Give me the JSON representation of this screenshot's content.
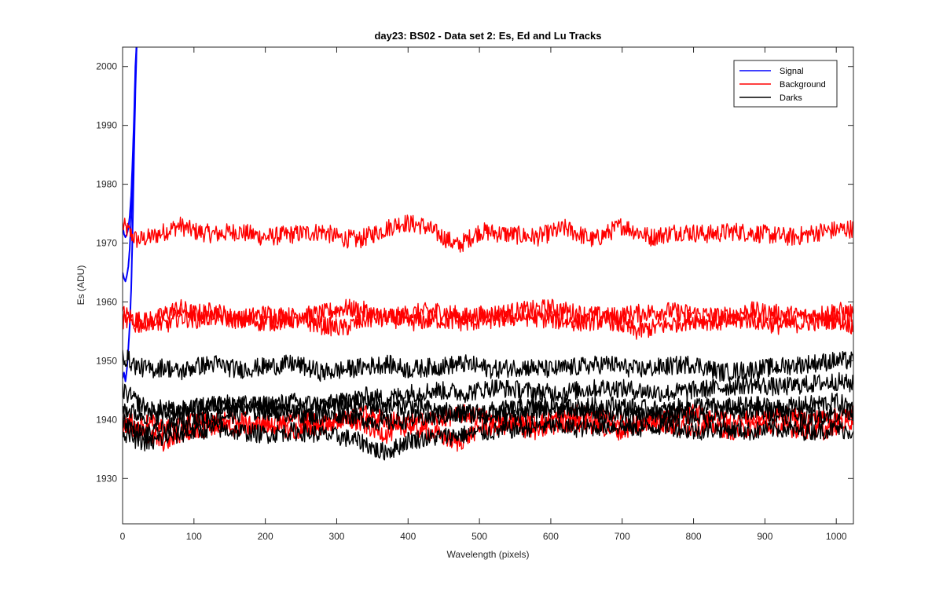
{
  "chart_data": {
    "type": "line",
    "title": "day23: BS02 - Data set 2: Es, Ed and Lu Tracks",
    "xlabel": "Wavelength (pixels)",
    "ylabel": "Es (ADU)",
    "xlim": [
      0,
      1024
    ],
    "ylim": [
      1922.3,
      2003.3
    ],
    "xticks": [
      0,
      100,
      200,
      300,
      400,
      500,
      600,
      700,
      800,
      900,
      1000
    ],
    "yticks": [
      1930,
      1940,
      1950,
      1960,
      1970,
      1980,
      1990,
      2000
    ],
    "grid": false,
    "legend_position": "top-right",
    "legend": [
      {
        "label": "Signal",
        "color": "#0000ff"
      },
      {
        "label": "Background",
        "color": "#ff0000"
      },
      {
        "label": "Darks",
        "color": "#000000"
      }
    ],
    "series": [
      {
        "group": "Signal",
        "color": "#0000ff",
        "x": [
          0,
          2,
          4,
          6,
          8,
          10,
          12,
          14,
          16,
          18,
          20
        ],
        "y": [
          1947,
          1948,
          1946.5,
          1948.5,
          1952,
          1956,
          1962,
          1972,
          1985,
          1996,
          2005
        ]
      },
      {
        "group": "Signal",
        "color": "#0000ff",
        "x": [
          0,
          2,
          4,
          6,
          8,
          10,
          12,
          14,
          16,
          18,
          20
        ],
        "y": [
          1965,
          1964,
          1963.5,
          1964.5,
          1966,
          1969,
          1974,
          1980,
          1988,
          1998,
          2005
        ]
      },
      {
        "group": "Signal",
        "color": "#0000ff",
        "x": [
          0,
          2,
          4,
          6,
          8,
          10,
          12,
          14,
          16,
          18,
          20
        ],
        "y": [
          1973,
          1971.5,
          1971,
          1971.5,
          1972.5,
          1974.5,
          1978,
          1984,
          1991,
          2000,
          2005
        ]
      },
      {
        "group": "Background",
        "color": "#ff0000",
        "x": [
          0,
          20,
          40,
          60,
          80,
          100,
          130,
          160,
          200,
          240,
          280,
          300,
          330,
          360,
          390,
          420,
          450,
          470,
          500,
          540,
          580,
          620,
          660,
          700,
          740,
          780,
          820,
          860,
          900,
          940,
          980,
          1024
        ],
        "y": [
          1973,
          1970.5,
          1971,
          1972,
          1973,
          1972,
          1971.5,
          1972,
          1971,
          1971.5,
          1972,
          1971,
          1970.5,
          1972,
          1973.5,
          1973,
          1971,
          1969.5,
          1972,
          1971.5,
          1971,
          1972.5,
          1970.5,
          1973,
          1971,
          1972,
          1971.5,
          1972,
          1971.5,
          1971,
          1972,
          1972.5
        ]
      },
      {
        "group": "Background",
        "color": "#ff0000",
        "x": [
          0,
          20,
          40,
          60,
          80,
          100,
          130,
          160,
          200,
          240,
          280,
          310,
          340,
          370,
          400,
          440,
          480,
          520,
          560,
          600,
          640,
          680,
          720,
          760,
          800,
          840,
          880,
          920,
          960,
          1000,
          1024
        ],
        "y": [
          1958,
          1957,
          1956.5,
          1958,
          1959,
          1958,
          1958.5,
          1957,
          1958,
          1957.5,
          1958,
          1959,
          1958.5,
          1957,
          1958,
          1958.5,
          1957.5,
          1958,
          1958.5,
          1959,
          1958,
          1957.5,
          1958,
          1958.5,
          1958,
          1957.5,
          1958.5,
          1958,
          1957.5,
          1958.5,
          1958
        ]
      },
      {
        "group": "Background",
        "color": "#ff0000",
        "x": [
          0,
          20,
          40,
          60,
          80,
          100,
          130,
          160,
          200,
          240,
          280,
          310,
          340,
          370,
          400,
          440,
          480,
          520,
          560,
          600,
          640,
          680,
          720,
          760,
          800,
          840,
          880,
          920,
          960,
          1000,
          1024
        ],
        "y": [
          1957,
          1956,
          1957,
          1956,
          1957.5,
          1957,
          1957.5,
          1957,
          1956.5,
          1957,
          1956,
          1955.5,
          1957,
          1957.5,
          1956.5,
          1957,
          1956.5,
          1957,
          1957.5,
          1957,
          1956.5,
          1957,
          1955,
          1956,
          1957,
          1956.5,
          1957,
          1956,
          1956.5,
          1957,
          1956
        ]
      },
      {
        "group": "Background",
        "color": "#ff0000",
        "x": [
          0,
          20,
          40,
          60,
          80,
          100,
          130,
          160,
          200,
          240,
          280,
          310,
          340,
          370,
          400,
          440,
          470,
          500,
          540,
          580,
          620,
          660,
          700,
          740,
          780,
          820,
          860,
          900,
          940,
          980,
          1024
        ],
        "y": [
          1939,
          1938,
          1937,
          1936,
          1937.5,
          1938,
          1939,
          1938.5,
          1939.5,
          1938,
          1939,
          1940,
          1939,
          1937.5,
          1939,
          1937.5,
          1936,
          1938.5,
          1939,
          1938,
          1939.5,
          1939,
          1938,
          1940,
          1938.5,
          1939,
          1938,
          1939,
          1938.5,
          1938,
          1940
        ]
      },
      {
        "group": "Background",
        "color": "#ff0000",
        "x": [
          0,
          20,
          40,
          60,
          80,
          100,
          130,
          160,
          200,
          240,
          280,
          310,
          340,
          370,
          400,
          440,
          480,
          520,
          560,
          600,
          640,
          680,
          720,
          760,
          800,
          840,
          880,
          920,
          960,
          1000,
          1024
        ],
        "y": [
          1940,
          1939,
          1939.5,
          1938.5,
          1939,
          1940,
          1939.5,
          1940,
          1939,
          1940.5,
          1939.5,
          1940,
          1941,
          1940,
          1939.5,
          1940,
          1941,
          1940,
          1939.5,
          1940,
          1941,
          1940,
          1939.5,
          1940,
          1941,
          1940.5,
          1940,
          1941,
          1940,
          1940.5,
          1941
        ]
      },
      {
        "group": "Darks",
        "color": "#000000",
        "x": [
          0,
          20,
          40,
          60,
          80,
          100,
          130,
          160,
          200,
          240,
          280,
          310,
          340,
          370,
          400,
          440,
          480,
          520,
          560,
          600,
          640,
          680,
          720,
          760,
          800,
          840,
          880,
          920,
          960,
          1000,
          1024
        ],
        "y": [
          1951,
          1949,
          1948.5,
          1949,
          1948,
          1949,
          1949.5,
          1948.5,
          1949,
          1949.5,
          1948,
          1948.5,
          1949,
          1949.5,
          1948.5,
          1949,
          1949.5,
          1948.5,
          1949,
          1948.5,
          1949,
          1949.5,
          1948.5,
          1949,
          1949.5,
          1948,
          1948.5,
          1949,
          1949.5,
          1950,
          1950
        ]
      },
      {
        "group": "Darks",
        "color": "#000000",
        "x": [
          0,
          20,
          40,
          60,
          80,
          100,
          130,
          160,
          200,
          240,
          280,
          310,
          340,
          370,
          400,
          440,
          480,
          520,
          560,
          600,
          640,
          680,
          720,
          760,
          800,
          840,
          880,
          920,
          960,
          1000,
          1024
        ],
        "y": [
          1945,
          1943,
          1941.5,
          1942,
          1941,
          1942,
          1942.5,
          1942,
          1942.5,
          1943,
          1942.5,
          1943,
          1944,
          1943.5,
          1944.5,
          1945,
          1944.5,
          1945.5,
          1945,
          1944.5,
          1945,
          1945.5,
          1945,
          1944.5,
          1945,
          1945.5,
          1946,
          1945.5,
          1946,
          1946.5,
          1946
        ]
      },
      {
        "group": "Darks",
        "color": "#000000",
        "x": [
          0,
          20,
          40,
          60,
          80,
          100,
          130,
          160,
          200,
          240,
          280,
          310,
          340,
          370,
          400,
          440,
          480,
          520,
          560,
          600,
          640,
          680,
          720,
          760,
          800,
          840,
          880,
          920,
          960,
          1000,
          1024
        ],
        "y": [
          1942,
          1941,
          1940.5,
          1941,
          1941.5,
          1942,
          1942.5,
          1943,
          1942,
          1941.5,
          1942,
          1943,
          1942.5,
          1942,
          1942.5,
          1941.5,
          1941,
          1941.5,
          1942,
          1942.5,
          1942,
          1942.5,
          1942,
          1941.5,
          1942.5,
          1942,
          1942.5,
          1942,
          1942.5,
          1943,
          1942
        ]
      },
      {
        "group": "Darks",
        "color": "#000000",
        "x": [
          0,
          20,
          40,
          60,
          80,
          100,
          130,
          160,
          200,
          240,
          280,
          310,
          340,
          370,
          400,
          440,
          480,
          520,
          560,
          600,
          640,
          680,
          720,
          760,
          800,
          840,
          880,
          920,
          960,
          1000,
          1024
        ],
        "y": [
          1940,
          1938,
          1937.5,
          1938.5,
          1939,
          1940,
          1940.5,
          1941,
          1941.5,
          1941,
          1940.5,
          1941,
          1940,
          1939.5,
          1940,
          1940.5,
          1941,
          1940.5,
          1941,
          1942,
          1941.5,
          1941,
          1940.5,
          1941,
          1940.5,
          1941,
          1941.5,
          1941,
          1940.5,
          1941,
          1941.5
        ]
      },
      {
        "group": "Darks",
        "color": "#000000",
        "x": [
          0,
          20,
          40,
          60,
          80,
          100,
          130,
          160,
          200,
          240,
          280,
          310,
          340,
          360,
          380,
          400,
          440,
          480,
          520,
          560,
          600,
          640,
          680,
          720,
          760,
          800,
          840,
          880,
          920,
          960,
          1000,
          1024
        ],
        "y": [
          1938,
          1936.5,
          1936,
          1937,
          1937.5,
          1938,
          1938.5,
          1938,
          1937.5,
          1938,
          1937.5,
          1937,
          1936,
          1934.5,
          1935,
          1936.5,
          1937,
          1937.5,
          1938,
          1938.5,
          1939,
          1938.5,
          1939,
          1938.5,
          1939,
          1938,
          1938.5,
          1938,
          1938.5,
          1938,
          1938.5,
          1938
        ]
      }
    ]
  }
}
